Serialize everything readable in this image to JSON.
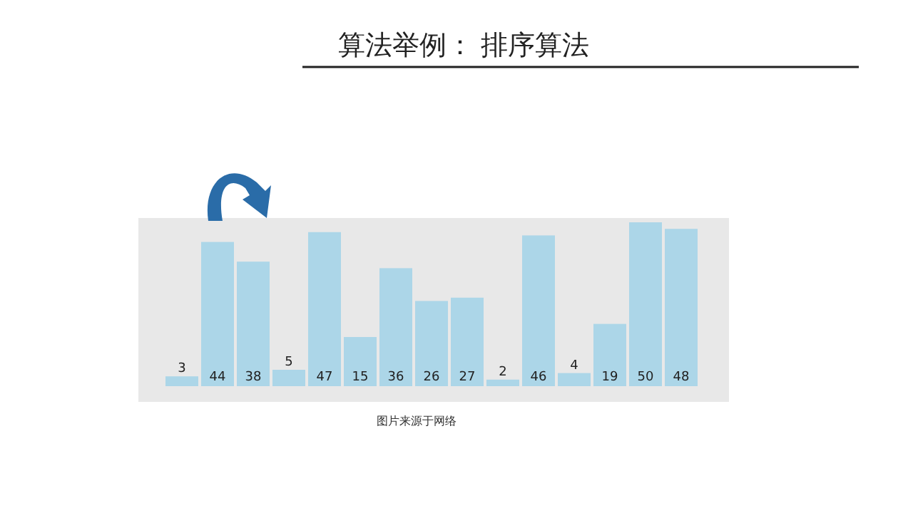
{
  "chart_data": {
    "type": "bar",
    "title": "算法举例：  排序算法",
    "categories": [
      null,
      null,
      null,
      null,
      null,
      null,
      null,
      null,
      null,
      null,
      null,
      null,
      null,
      null,
      null
    ],
    "values": [
      3,
      44,
      38,
      5,
      47,
      15,
      36,
      26,
      27,
      2,
      46,
      4,
      19,
      50,
      48
    ],
    "color": "#acd6e8",
    "data_labels": true,
    "annotations": [
      "图片来源于网络"
    ]
  }
}
